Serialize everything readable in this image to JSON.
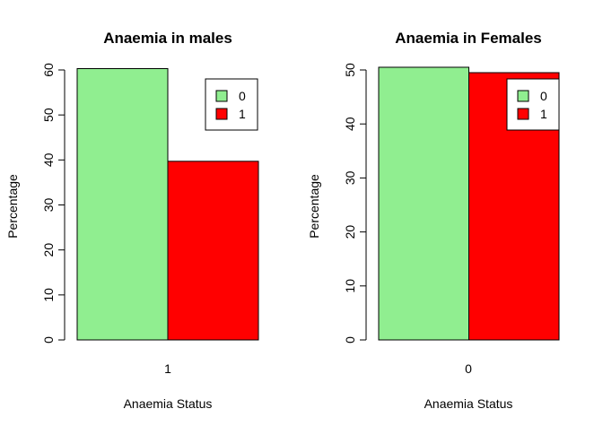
{
  "colors": {
    "0": "#90EE90",
    "1": "#FF0000"
  },
  "chart_data": [
    {
      "type": "bar",
      "title": "Anaemia in males",
      "xlabel": "Anaemia Status",
      "ylabel": "Percentage",
      "categories": [
        "1"
      ],
      "series": [
        {
          "name": "0",
          "values": [
            60.3
          ],
          "color": "#90EE90"
        },
        {
          "name": "1",
          "values": [
            39.7
          ],
          "color": "#FF0000"
        }
      ],
      "ylim": [
        0,
        60
      ],
      "yticks": [
        0,
        10,
        20,
        30,
        40,
        50,
        60
      ],
      "legend": {
        "position": "top-right",
        "entries": [
          "0",
          "1"
        ]
      },
      "grid": false
    },
    {
      "type": "bar",
      "title": "Anaemia in Females",
      "xlabel": "Anaemia Status",
      "ylabel": "Percentage",
      "categories": [
        "0"
      ],
      "series": [
        {
          "name": "0",
          "values": [
            50.5
          ],
          "color": "#90EE90"
        },
        {
          "name": "1",
          "values": [
            49.5
          ],
          "color": "#FF0000"
        }
      ],
      "ylim": [
        0,
        50
      ],
      "yticks": [
        0,
        10,
        20,
        30,
        40,
        50
      ],
      "legend": {
        "position": "top-right",
        "entries": [
          "0",
          "1"
        ]
      },
      "grid": false
    }
  ]
}
